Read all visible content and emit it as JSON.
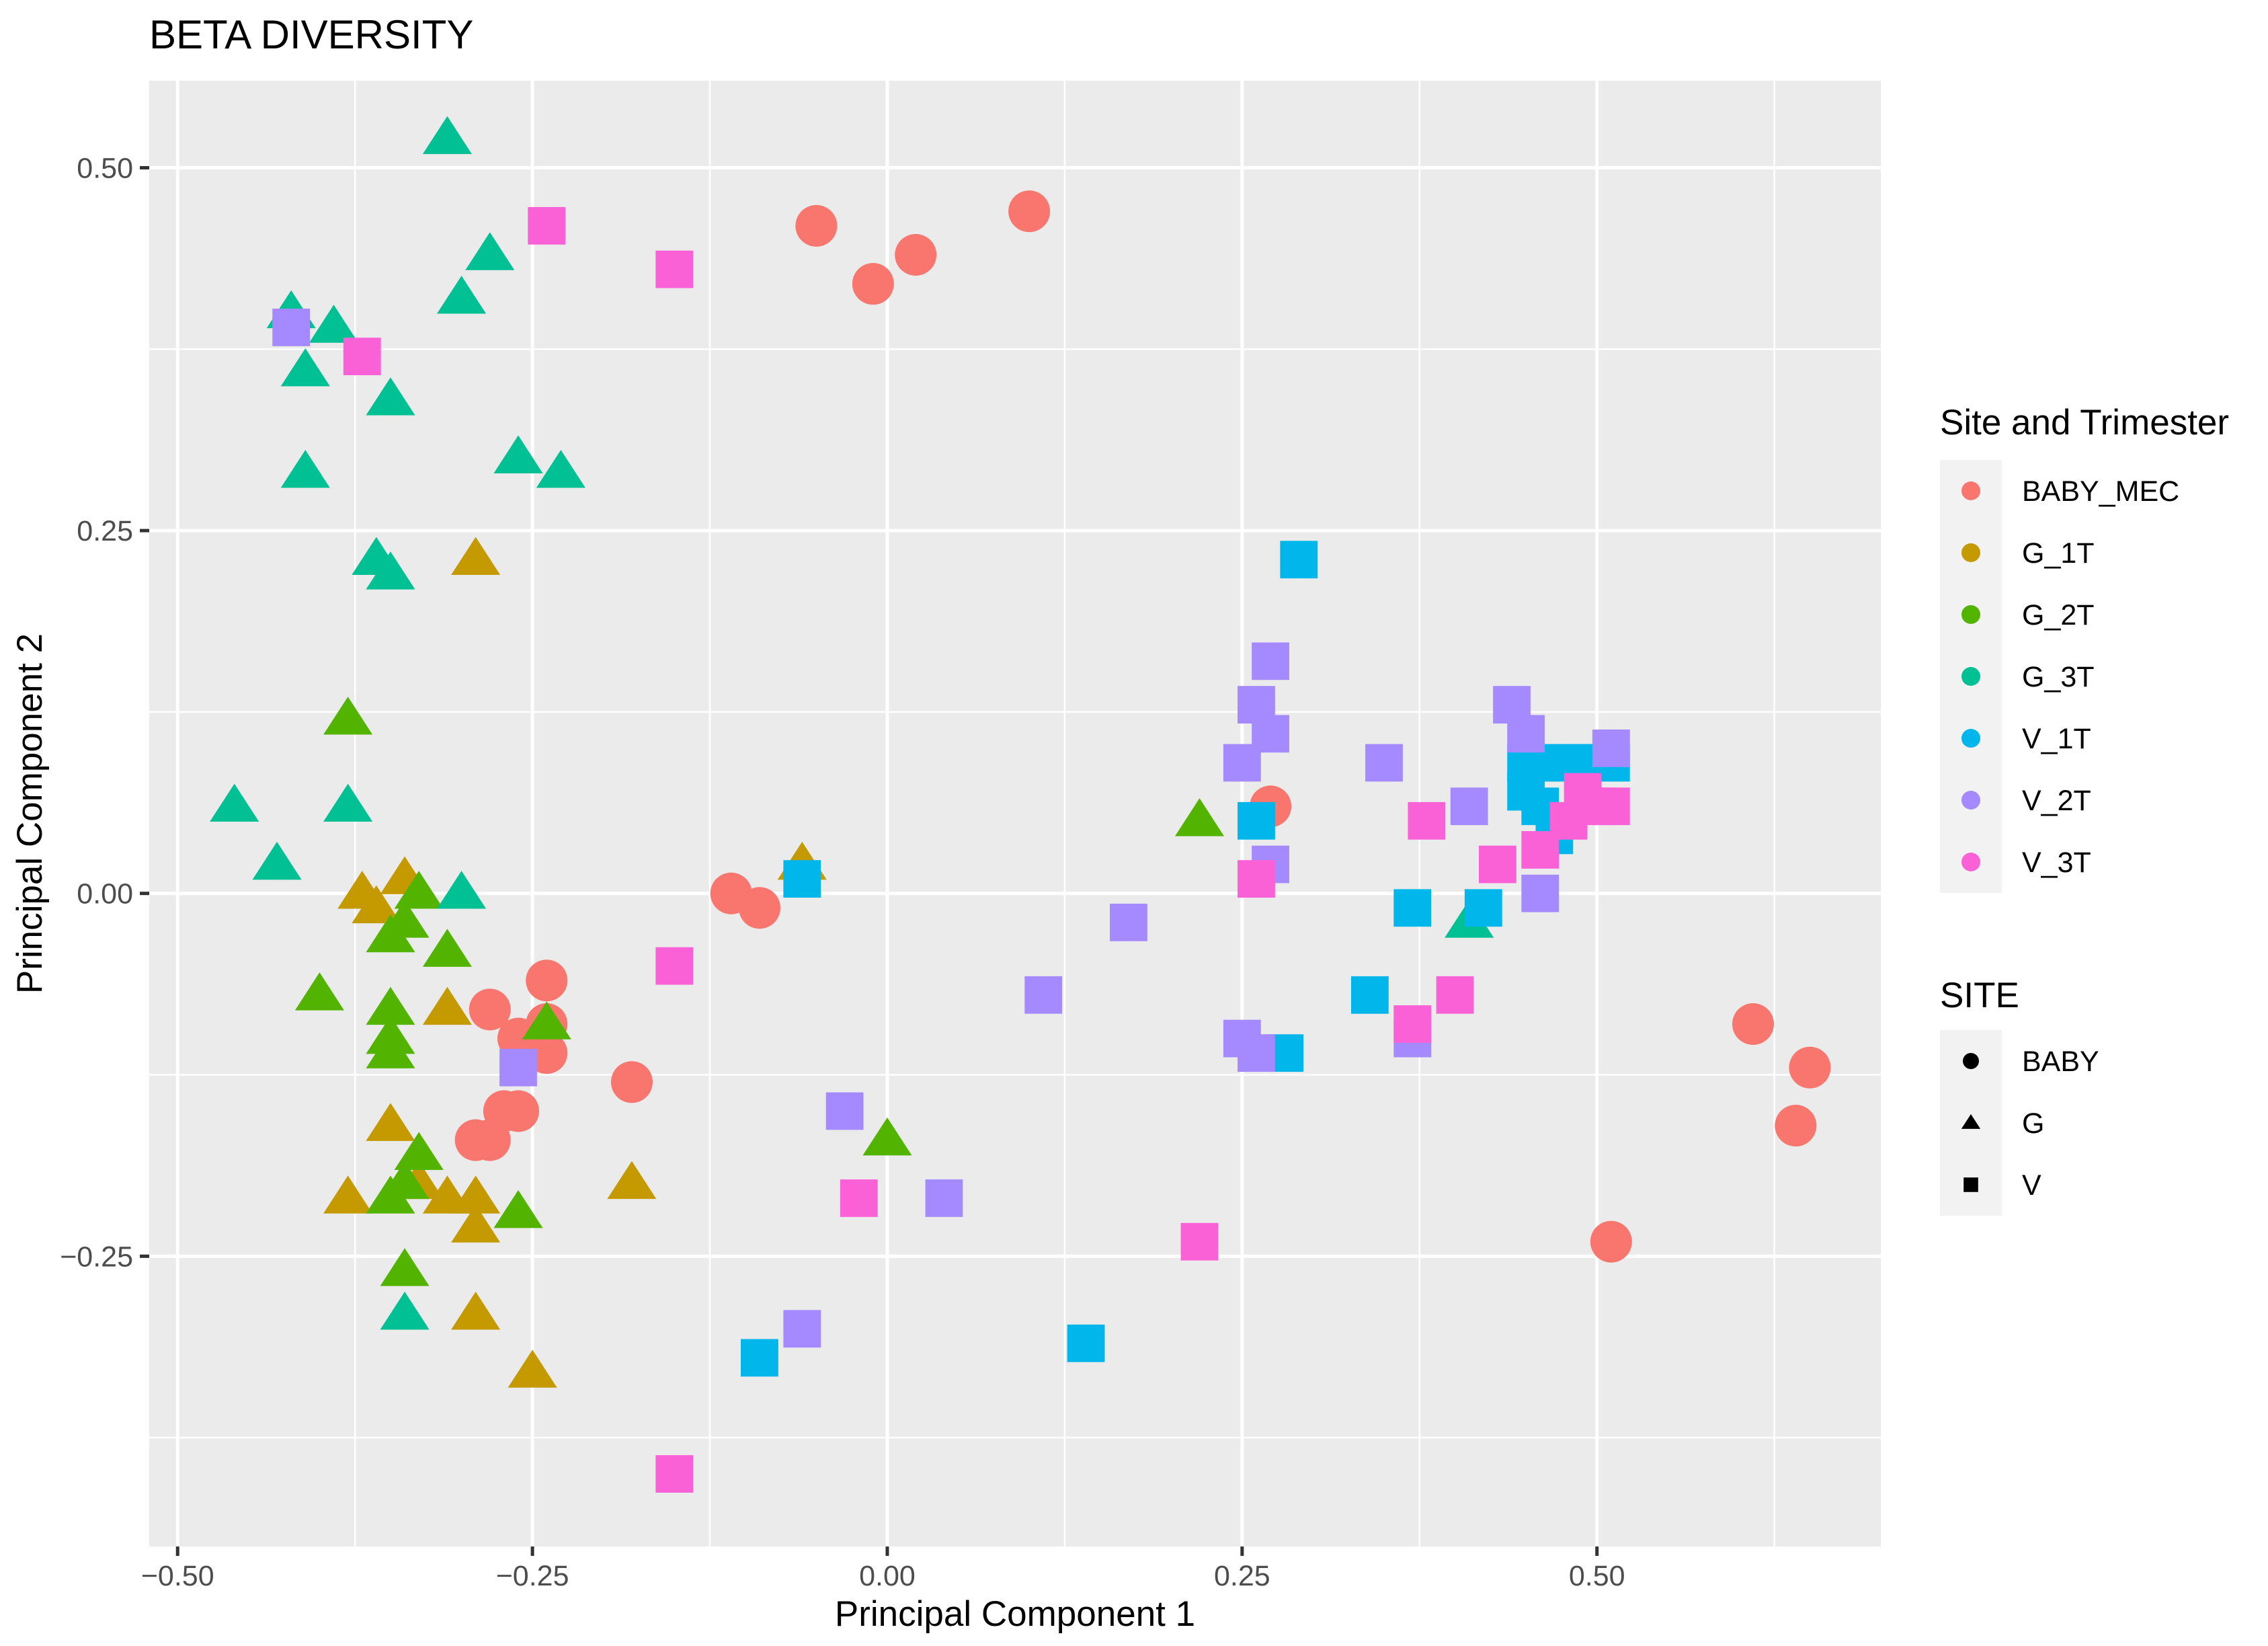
{
  "chart_data": {
    "type": "scatter",
    "title": "BETA DIVERSITY",
    "xlabel": "Principal Component 1",
    "ylabel": "Principal Component 2",
    "xlim": [
      -0.52,
      0.7
    ],
    "ylim": [
      -0.45,
      0.56
    ],
    "x_ticks": [
      -0.5,
      -0.25,
      0.0,
      0.25,
      0.5
    ],
    "x_tick_labels": [
      "−0.50",
      "−0.25",
      "0.00",
      "0.25",
      "0.50"
    ],
    "y_ticks": [
      -0.25,
      0.0,
      0.25,
      0.5
    ],
    "y_tick_labels": [
      "−0.25",
      "0.00",
      "0.25",
      "0.50"
    ],
    "grid": true,
    "legend_color": {
      "title": "Site and Trimester",
      "position": "right",
      "entries": [
        {
          "label": "BABY_MEC",
          "color": "#F8766D"
        },
        {
          "label": "G_1T",
          "color": "#C49A00"
        },
        {
          "label": "G_2T",
          "color": "#53B400"
        },
        {
          "label": "G_3T",
          "color": "#00C094"
        },
        {
          "label": "V_1T",
          "color": "#00B6EB"
        },
        {
          "label": "V_2T",
          "color": "#A58AFF"
        },
        {
          "label": "V_3T",
          "color": "#FB61D7"
        }
      ]
    },
    "legend_shape": {
      "title": "SITE",
      "position": "right",
      "entries": [
        {
          "label": "BABY",
          "shape": "circle"
        },
        {
          "label": "G",
          "shape": "triangle"
        },
        {
          "label": "V",
          "shape": "square"
        }
      ]
    },
    "series": [
      {
        "name": "BABY_MEC",
        "shape": "circle",
        "color": "#F8766D",
        "x": [
          -0.05,
          -0.01,
          0.02,
          0.1,
          -0.11,
          -0.09,
          0.27,
          -0.28,
          -0.24,
          -0.26,
          -0.24,
          -0.24,
          -0.27,
          -0.26,
          -0.29,
          -0.28,
          -0.18,
          0.61,
          0.65,
          0.64,
          0.51
        ],
        "y": [
          0.46,
          0.42,
          0.44,
          0.47,
          0.0,
          -0.01,
          0.06,
          -0.08,
          -0.06,
          -0.1,
          -0.09,
          -0.11,
          -0.15,
          -0.15,
          -0.17,
          -0.17,
          -0.13,
          -0.09,
          -0.12,
          -0.16,
          -0.24
        ]
      },
      {
        "name": "G_1T",
        "shape": "triangle",
        "color": "#C49A00",
        "x": [
          -0.29,
          -0.06,
          -0.37,
          -0.36,
          -0.34,
          -0.31,
          -0.35,
          -0.34,
          -0.33,
          -0.38,
          -0.33,
          -0.31,
          -0.29,
          -0.29,
          -0.18,
          -0.29,
          -0.25
        ],
        "y": [
          0.23,
          0.02,
          0.0,
          -0.01,
          0.01,
          -0.08,
          -0.16,
          -0.2,
          -0.18,
          -0.21,
          -0.2,
          -0.21,
          -0.21,
          -0.23,
          -0.2,
          -0.29,
          -0.33
        ]
      },
      {
        "name": "G_2T",
        "shape": "triangle",
        "color": "#53B400",
        "x": [
          -0.38,
          0.22,
          -0.33,
          -0.34,
          -0.35,
          -0.4,
          -0.31,
          -0.35,
          -0.35,
          -0.24,
          -0.33,
          -0.35,
          -0.34,
          -0.26,
          -0.34,
          0.0,
          -0.35
        ],
        "y": [
          0.12,
          0.05,
          0.0,
          -0.02,
          -0.03,
          -0.07,
          -0.04,
          -0.08,
          -0.1,
          -0.09,
          -0.18,
          -0.21,
          -0.2,
          -0.22,
          -0.26,
          -0.17,
          -0.11
        ]
      },
      {
        "name": "G_3T",
        "shape": "triangle",
        "color": "#00C094",
        "x": [
          -0.31,
          -0.28,
          -0.3,
          -0.42,
          -0.39,
          -0.41,
          -0.35,
          -0.41,
          -0.26,
          -0.23,
          -0.36,
          -0.35,
          -0.46,
          -0.38,
          -0.43,
          -0.3,
          -0.34,
          0.41
        ],
        "y": [
          0.52,
          0.44,
          0.41,
          0.4,
          0.39,
          0.36,
          0.34,
          0.29,
          0.3,
          0.29,
          0.23,
          0.22,
          0.06,
          0.06,
          0.02,
          0.0,
          -0.29,
          -0.02
        ]
      },
      {
        "name": "V_1T",
        "shape": "square",
        "color": "#00B6EB",
        "x": [
          0.29,
          -0.06,
          0.26,
          0.37,
          0.42,
          0.34,
          0.28,
          0.14,
          -0.09,
          0.45,
          0.46,
          0.46,
          0.47,
          0.49,
          0.51,
          0.45,
          0.48
        ],
        "y": [
          0.23,
          0.01,
          0.05,
          -0.01,
          -0.01,
          -0.07,
          -0.11,
          -0.31,
          -0.32,
          0.07,
          0.09,
          0.06,
          0.04,
          0.09,
          0.09,
          0.09,
          0.09
        ]
      },
      {
        "name": "V_2T",
        "shape": "square",
        "color": "#A58AFF",
        "x": [
          -0.42,
          0.27,
          0.26,
          0.27,
          0.25,
          0.35,
          0.44,
          0.45,
          0.51,
          0.41,
          0.27,
          0.17,
          0.11,
          0.25,
          0.26,
          0.37,
          0.46,
          -0.26,
          -0.03,
          0.04,
          -0.06
        ],
        "y": [
          0.39,
          0.16,
          0.13,
          0.11,
          0.09,
          0.09,
          0.13,
          0.11,
          0.1,
          0.06,
          0.02,
          -0.02,
          -0.07,
          -0.1,
          -0.11,
          -0.1,
          0.0,
          -0.12,
          -0.15,
          -0.21,
          -0.3
        ]
      },
      {
        "name": "V_3T",
        "shape": "square",
        "color": "#FB61D7",
        "x": [
          -0.24,
          -0.15,
          -0.37,
          0.38,
          0.43,
          0.46,
          0.48,
          0.49,
          0.5,
          0.26,
          -0.15,
          0.37,
          0.4,
          -0.02,
          0.22,
          -0.15,
          0.51
        ],
        "y": [
          0.46,
          0.43,
          0.37,
          0.05,
          0.02,
          0.03,
          0.05,
          0.07,
          0.06,
          0.01,
          -0.05,
          -0.09,
          -0.07,
          -0.21,
          -0.24,
          -0.4,
          0.06
        ]
      }
    ]
  }
}
